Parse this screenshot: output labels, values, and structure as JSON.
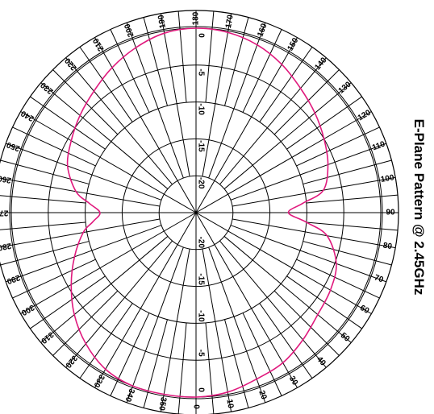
{
  "chart_data": {
    "type": "polar-line",
    "title": "E-Plane Pattern @ 2.45GHz",
    "r_range": [
      -25,
      0
    ],
    "radial_ticks": [
      0,
      -5,
      -10,
      -15,
      -20
    ],
    "radial_tick_labels": [
      "0",
      "-5",
      "-10",
      "-15",
      "-20"
    ],
    "angle_tick_labels": [
      "0",
      "10",
      "20",
      "30",
      "40",
      "50",
      "60",
      "70",
      "80",
      "90",
      "100",
      "110",
      "120",
      "130",
      "140",
      "150",
      "160",
      "170",
      "180",
      "190",
      "200",
      "210",
      "220",
      "230",
      "240",
      "250",
      "260",
      "270",
      "280",
      "290",
      "300",
      "310",
      "320",
      "330",
      "340",
      "350"
    ],
    "angular_grid_step_deg": 5,
    "series": [
      {
        "color": "#e0197d",
        "angles": [
          0,
          10,
          20,
          30,
          40,
          50,
          60,
          70,
          80,
          85,
          90,
          95,
          100,
          110,
          120,
          130,
          140,
          150,
          160,
          170,
          180,
          190,
          200,
          210,
          220,
          230,
          240,
          250,
          260,
          265,
          270,
          275,
          280,
          290,
          300,
          310,
          320,
          330,
          340,
          350
        ],
        "values": [
          0,
          -0.3,
          -1.0,
          -1.5,
          -2.5,
          -3.5,
          -4.0,
          -4.8,
          -7.0,
          -10.0,
          -12.5,
          -10.5,
          -7.5,
          -6.0,
          -5.0,
          -4.0,
          -3.0,
          -1.8,
          -0.8,
          -0.2,
          0,
          -0.3,
          -1.2,
          -2.3,
          -3.5,
          -4.5,
          -5.5,
          -6.5,
          -8.5,
          -10.5,
          -12.0,
          -11.0,
          -9.5,
          -7.5,
          -5.5,
          -3.5,
          -1.8,
          -0.5,
          0,
          0
        ]
      }
    ],
    "legend": "none",
    "grid": true
  }
}
